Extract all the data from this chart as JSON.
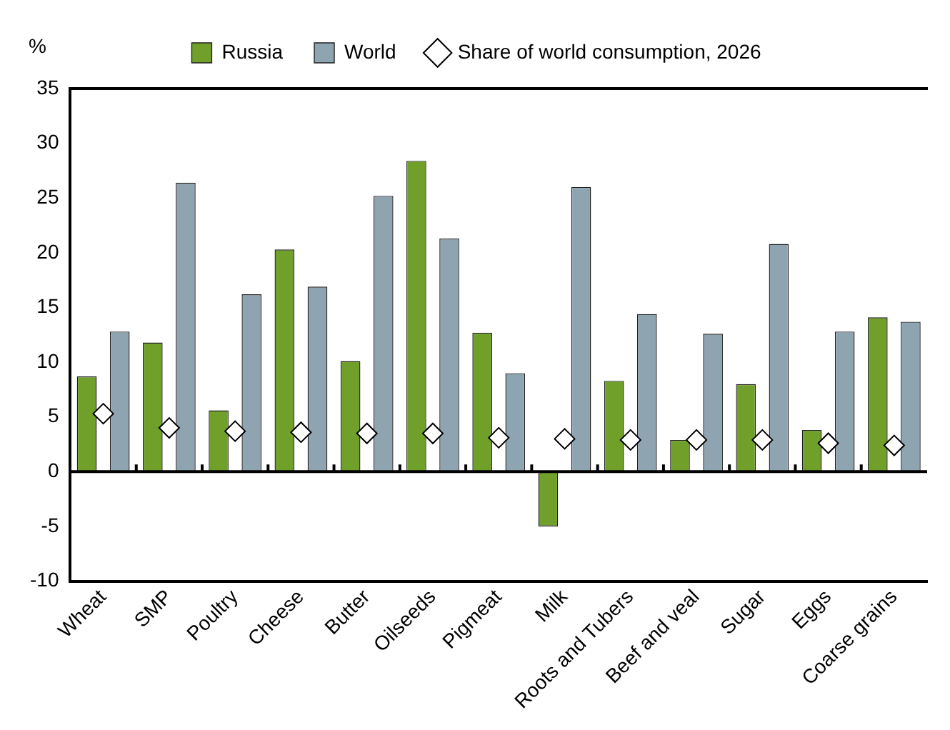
{
  "chart_data": {
    "type": "bar",
    "ylabel": "%",
    "categories": [
      "Wheat",
      "SMP",
      "Poultry",
      "Cheese",
      "Butter",
      "Oilseeds",
      "Pigmeat",
      "Milk",
      "Roots and Tubers",
      "Beef and veal",
      "Sugar",
      "Eggs",
      "Coarse grains"
    ],
    "series": [
      {
        "name": "Russia",
        "color": "#70a02a",
        "values": [
          8.7,
          11.8,
          5.6,
          20.3,
          10.1,
          28.4,
          12.7,
          -5.0,
          8.3,
          2.9,
          8.0,
          3.8,
          14.1
        ]
      },
      {
        "name": "World",
        "color": "#8fa4b1",
        "values": [
          12.8,
          26.4,
          16.2,
          16.9,
          25.2,
          21.3,
          9.0,
          26.0,
          14.4,
          12.6,
          20.8,
          12.8,
          13.7
        ]
      },
      {
        "name": "Share of world consumption, 2026",
        "type": "scatter",
        "color": "#ffffff",
        "marker": "diamond",
        "x": [
          "Wheat",
          "SMP",
          "Poultry",
          "Cheese",
          "Butter",
          "Oilseeds",
          "Pigmeat",
          "Milk",
          "Roots and Tubers",
          "Beef and veal",
          "Sugar",
          "Eggs",
          "Coarse grains"
        ],
        "values": [
          5.3,
          4.0,
          3.7,
          3.6,
          3.5,
          3.5,
          3.1,
          3.0,
          2.9,
          2.9,
          2.9,
          2.6,
          2.4
        ]
      }
    ],
    "ref_lines": [
      {
        "axis": "y",
        "value": 0,
        "color": "#000000"
      }
    ],
    "ylim": [
      -10,
      35
    ],
    "yticks": [
      -10,
      -5,
      0,
      5,
      10,
      15,
      20,
      25,
      30,
      35
    ],
    "grid": false,
    "legend": "top"
  }
}
